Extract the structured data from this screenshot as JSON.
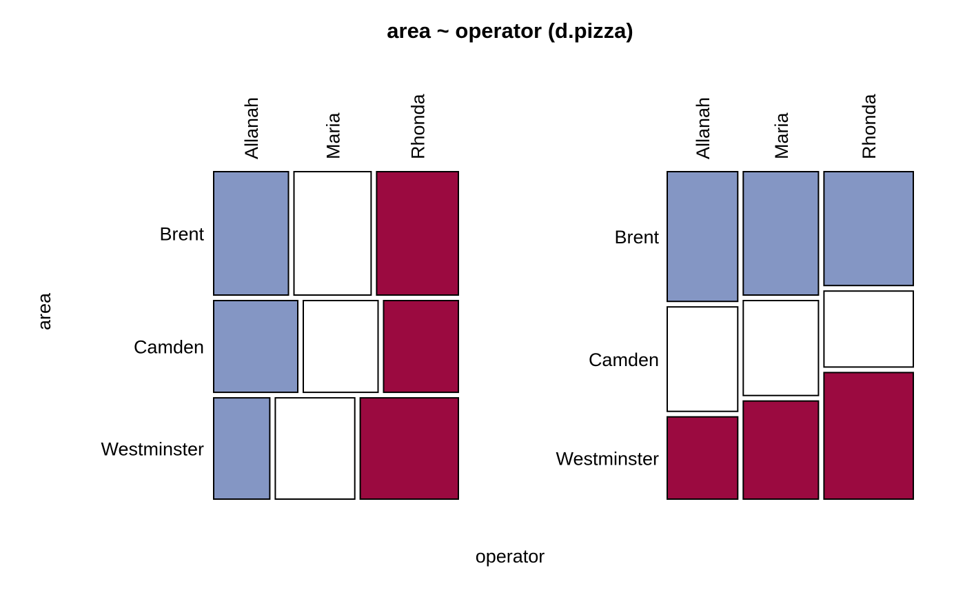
{
  "chart_data": {
    "type": "mosaic",
    "title": "area ~ operator (d.pizza)",
    "xlabel": "operator",
    "ylabel": "area",
    "colors": {
      "first": "#8496C4",
      "middle": "#FFFFFF",
      "last": "#9B0A40"
    },
    "panels": [
      {
        "name": "left",
        "layout": "rows-first",
        "rows": [
          "Brent",
          "Camden",
          "Westminster"
        ],
        "columns": [
          "Allanah",
          "Maria",
          "Rhonda"
        ],
        "row_proportions": [
          0.39,
          0.29,
          0.32
        ],
        "cell_proportions": [
          [
            0.32,
            0.33,
            0.35
          ],
          [
            0.36,
            0.32,
            0.32
          ],
          [
            0.24,
            0.34,
            0.42
          ]
        ]
      },
      {
        "name": "right",
        "layout": "columns-first",
        "rows": [
          "Brent",
          "Camden",
          "Westminster"
        ],
        "columns": [
          "Allanah",
          "Maria",
          "Rhonda"
        ],
        "column_proportions": [
          0.3,
          0.32,
          0.38
        ],
        "cell_proportions": [
          [
            0.41,
            0.33,
            0.26
          ],
          [
            0.39,
            0.3,
            0.31
          ],
          [
            0.36,
            0.24,
            0.4
          ]
        ]
      }
    ]
  }
}
